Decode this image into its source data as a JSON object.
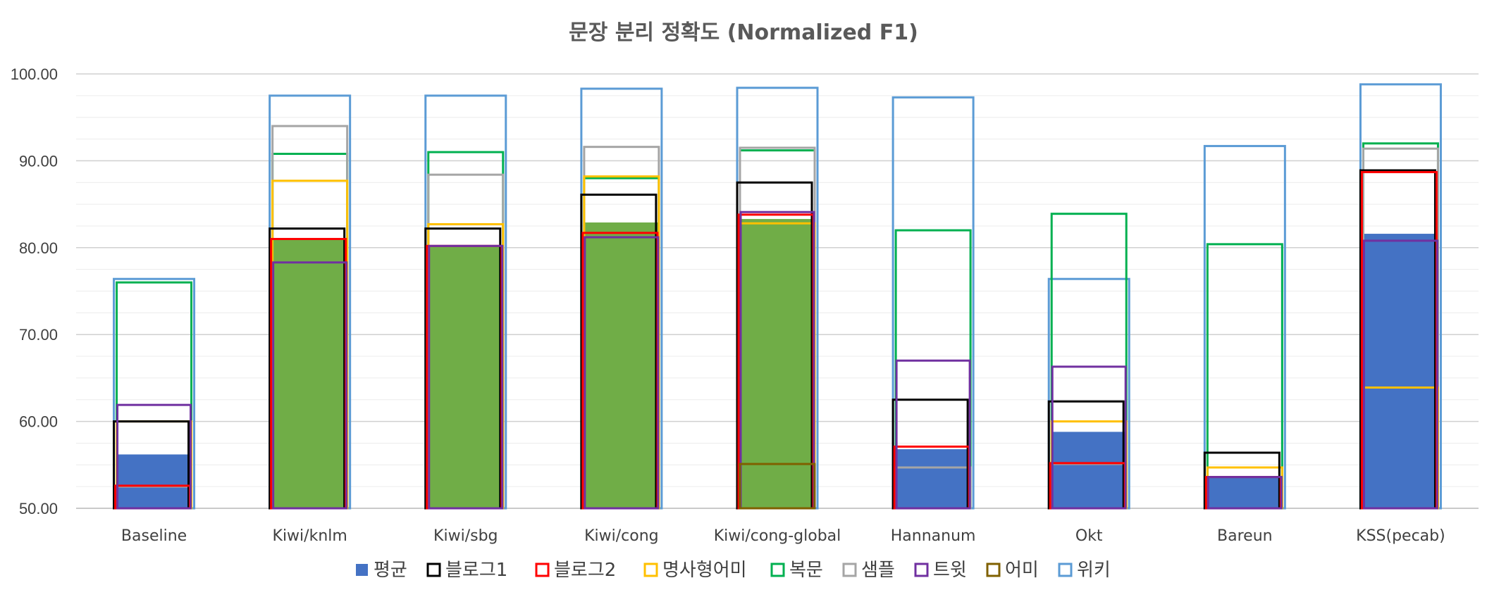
{
  "chart_data": {
    "type": "bar",
    "title": "문장 분리 정확도 (Normalized F1)",
    "xlabel": "",
    "ylabel": "",
    "ylim": [
      50,
      100
    ],
    "ytick_labels": [
      "50.00",
      "60.00",
      "70.00",
      "80.00",
      "90.00",
      "100.00"
    ],
    "grid": true,
    "legend_position": "bottom",
    "categories": [
      "Baseline",
      "Kiwi/knlm",
      "Kiwi/sbg",
      "Kiwi/cong",
      "Kiwi/cong-global",
      "Hannanum",
      "Okt",
      "Bareun",
      "KSS(pecab)"
    ],
    "series": [
      {
        "name": "평균",
        "color": "#4472C4",
        "style": "fill",
        "values": [
          56.2,
          81.0,
          80.1,
          82.9,
          83.3,
          56.8,
          58.8,
          53.6,
          81.6
        ]
      },
      {
        "name": "블로그1",
        "color": "#000000",
        "style": "outline",
        "values": [
          60.0,
          82.2,
          82.2,
          86.1,
          87.5,
          62.5,
          62.3,
          56.4,
          88.9
        ]
      },
      {
        "name": "블로그2",
        "color": "#FF0000",
        "style": "outline",
        "values": [
          52.6,
          81.0,
          80.2,
          81.7,
          83.8,
          57.1,
          55.2,
          53.6,
          88.7
        ]
      },
      {
        "name": "명사형어미",
        "color": "#FFC000",
        "style": "outline",
        "values": [
          60.0,
          87.7,
          82.7,
          88.2,
          82.8,
          50.0,
          60.0,
          54.7,
          63.9
        ]
      },
      {
        "name": "복문",
        "color": "#00B050",
        "style": "outline",
        "values": [
          76.0,
          90.8,
          91.0,
          88.0,
          91.2,
          82.0,
          83.9,
          80.4,
          92.0
        ]
      },
      {
        "name": "샘플",
        "color": "#A5A5A5",
        "style": "outline",
        "values": [
          52.5,
          94.0,
          88.4,
          91.6,
          91.5,
          54.7,
          55.1,
          50.0,
          91.4
        ]
      },
      {
        "name": "트윗",
        "color": "#7030A0",
        "style": "outline",
        "values": [
          61.9,
          78.3,
          80.2,
          81.2,
          84.1,
          67.0,
          66.3,
          53.6,
          80.8
        ]
      },
      {
        "name": "어미",
        "color": "#7F6000",
        "style": "outline",
        "values": [
          50.0,
          50.0,
          50.0,
          50.0,
          55.1,
          50.0,
          50.0,
          50.0,
          50.0
        ]
      },
      {
        "name": "위키",
        "color": "#5B9BD5",
        "style": "outline",
        "values": [
          76.4,
          97.5,
          97.5,
          98.3,
          98.4,
          97.3,
          76.4,
          91.7,
          98.8
        ]
      }
    ],
    "greenfill_value_key": "복문 fill overlay on Kiwi bars",
    "green_fill": {
      "color": "#70AD47",
      "values": [
        null,
        81.0,
        80.1,
        82.9,
        83.3,
        null,
        null,
        null,
        null
      ]
    }
  }
}
